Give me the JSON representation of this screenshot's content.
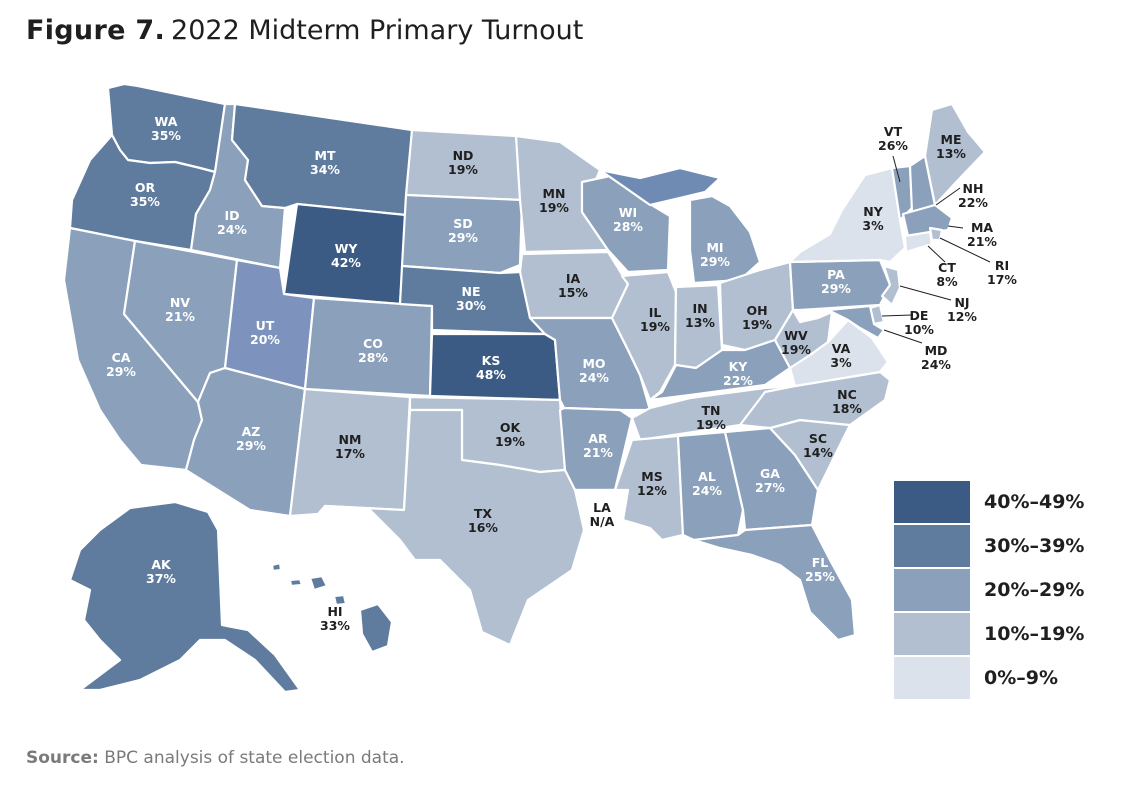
{
  "figure": {
    "label": "Figure 7.",
    "title": "2022 Midterm Primary Turnout"
  },
  "colors": {
    "bin_40_49": "#3b5b84",
    "bin_30_39": "#5f7c9f",
    "bin_20_29": "#8ba0bb",
    "bin_10_19": "#b1bfd1",
    "bin_0_9": "#dce2ec",
    "no_data": "#ffffff",
    "utah": "#7d93bd",
    "text_dark": "#1f1f1f",
    "text_light": "#ffffff"
  },
  "legend": [
    {
      "label": "40%–49%",
      "color": "#3b5b84"
    },
    {
      "label": "30%–39%",
      "color": "#5f7c9f"
    },
    {
      "label": "20%–29%",
      "color": "#8ba0bb"
    },
    {
      "label": "10%–19%",
      "color": "#b1bfd1"
    },
    {
      "label": "0%–9%",
      "color": "#dce2ec"
    }
  ],
  "states": [
    {
      "abbr": "WA",
      "value": "35%"
    },
    {
      "abbr": "OR",
      "value": "35%"
    },
    {
      "abbr": "CA",
      "value": "29%"
    },
    {
      "abbr": "ID",
      "value": "24%"
    },
    {
      "abbr": "NV",
      "value": "21%"
    },
    {
      "abbr": "MT",
      "value": "34%"
    },
    {
      "abbr": "WY",
      "value": "42%"
    },
    {
      "abbr": "UT",
      "value": "20%"
    },
    {
      "abbr": "AZ",
      "value": "29%"
    },
    {
      "abbr": "CO",
      "value": "28%"
    },
    {
      "abbr": "NM",
      "value": "17%"
    },
    {
      "abbr": "ND",
      "value": "19%"
    },
    {
      "abbr": "SD",
      "value": "29%"
    },
    {
      "abbr": "NE",
      "value": "30%"
    },
    {
      "abbr": "KS",
      "value": "48%"
    },
    {
      "abbr": "OK",
      "value": "19%"
    },
    {
      "abbr": "TX",
      "value": "16%"
    },
    {
      "abbr": "MN",
      "value": "19%"
    },
    {
      "abbr": "IA",
      "value": "15%"
    },
    {
      "abbr": "MO",
      "value": "24%"
    },
    {
      "abbr": "AR",
      "value": "21%"
    },
    {
      "abbr": "LA",
      "value": "N/A"
    },
    {
      "abbr": "WI",
      "value": "28%"
    },
    {
      "abbr": "IL",
      "value": "19%"
    },
    {
      "abbr": "MI",
      "value": "29%"
    },
    {
      "abbr": "IN",
      "value": "13%"
    },
    {
      "abbr": "OH",
      "value": "19%"
    },
    {
      "abbr": "KY",
      "value": "22%"
    },
    {
      "abbr": "TN",
      "value": "19%"
    },
    {
      "abbr": "MS",
      "value": "12%"
    },
    {
      "abbr": "AL",
      "value": "24%"
    },
    {
      "abbr": "GA",
      "value": "27%"
    },
    {
      "abbr": "FL",
      "value": "25%"
    },
    {
      "abbr": "SC",
      "value": "14%"
    },
    {
      "abbr": "NC",
      "value": "18%"
    },
    {
      "abbr": "VA",
      "value": "3%"
    },
    {
      "abbr": "WV",
      "value": "19%"
    },
    {
      "abbr": "PA",
      "value": "29%"
    },
    {
      "abbr": "NY",
      "value": "3%"
    },
    {
      "abbr": "VT",
      "value": "26%"
    },
    {
      "abbr": "ME",
      "value": "13%"
    },
    {
      "abbr": "NH",
      "value": "22%"
    },
    {
      "abbr": "MA",
      "value": "21%"
    },
    {
      "abbr": "RI",
      "value": "17%"
    },
    {
      "abbr": "CT",
      "value": "8%"
    },
    {
      "abbr": "NJ",
      "value": "12%"
    },
    {
      "abbr": "DE",
      "value": "10%"
    },
    {
      "abbr": "MD",
      "value": "24%"
    },
    {
      "abbr": "AK",
      "value": "37%"
    },
    {
      "abbr": "HI",
      "value": "33%"
    }
  ],
  "source": {
    "label": "Source:",
    "text": "BPC analysis of state election data."
  }
}
